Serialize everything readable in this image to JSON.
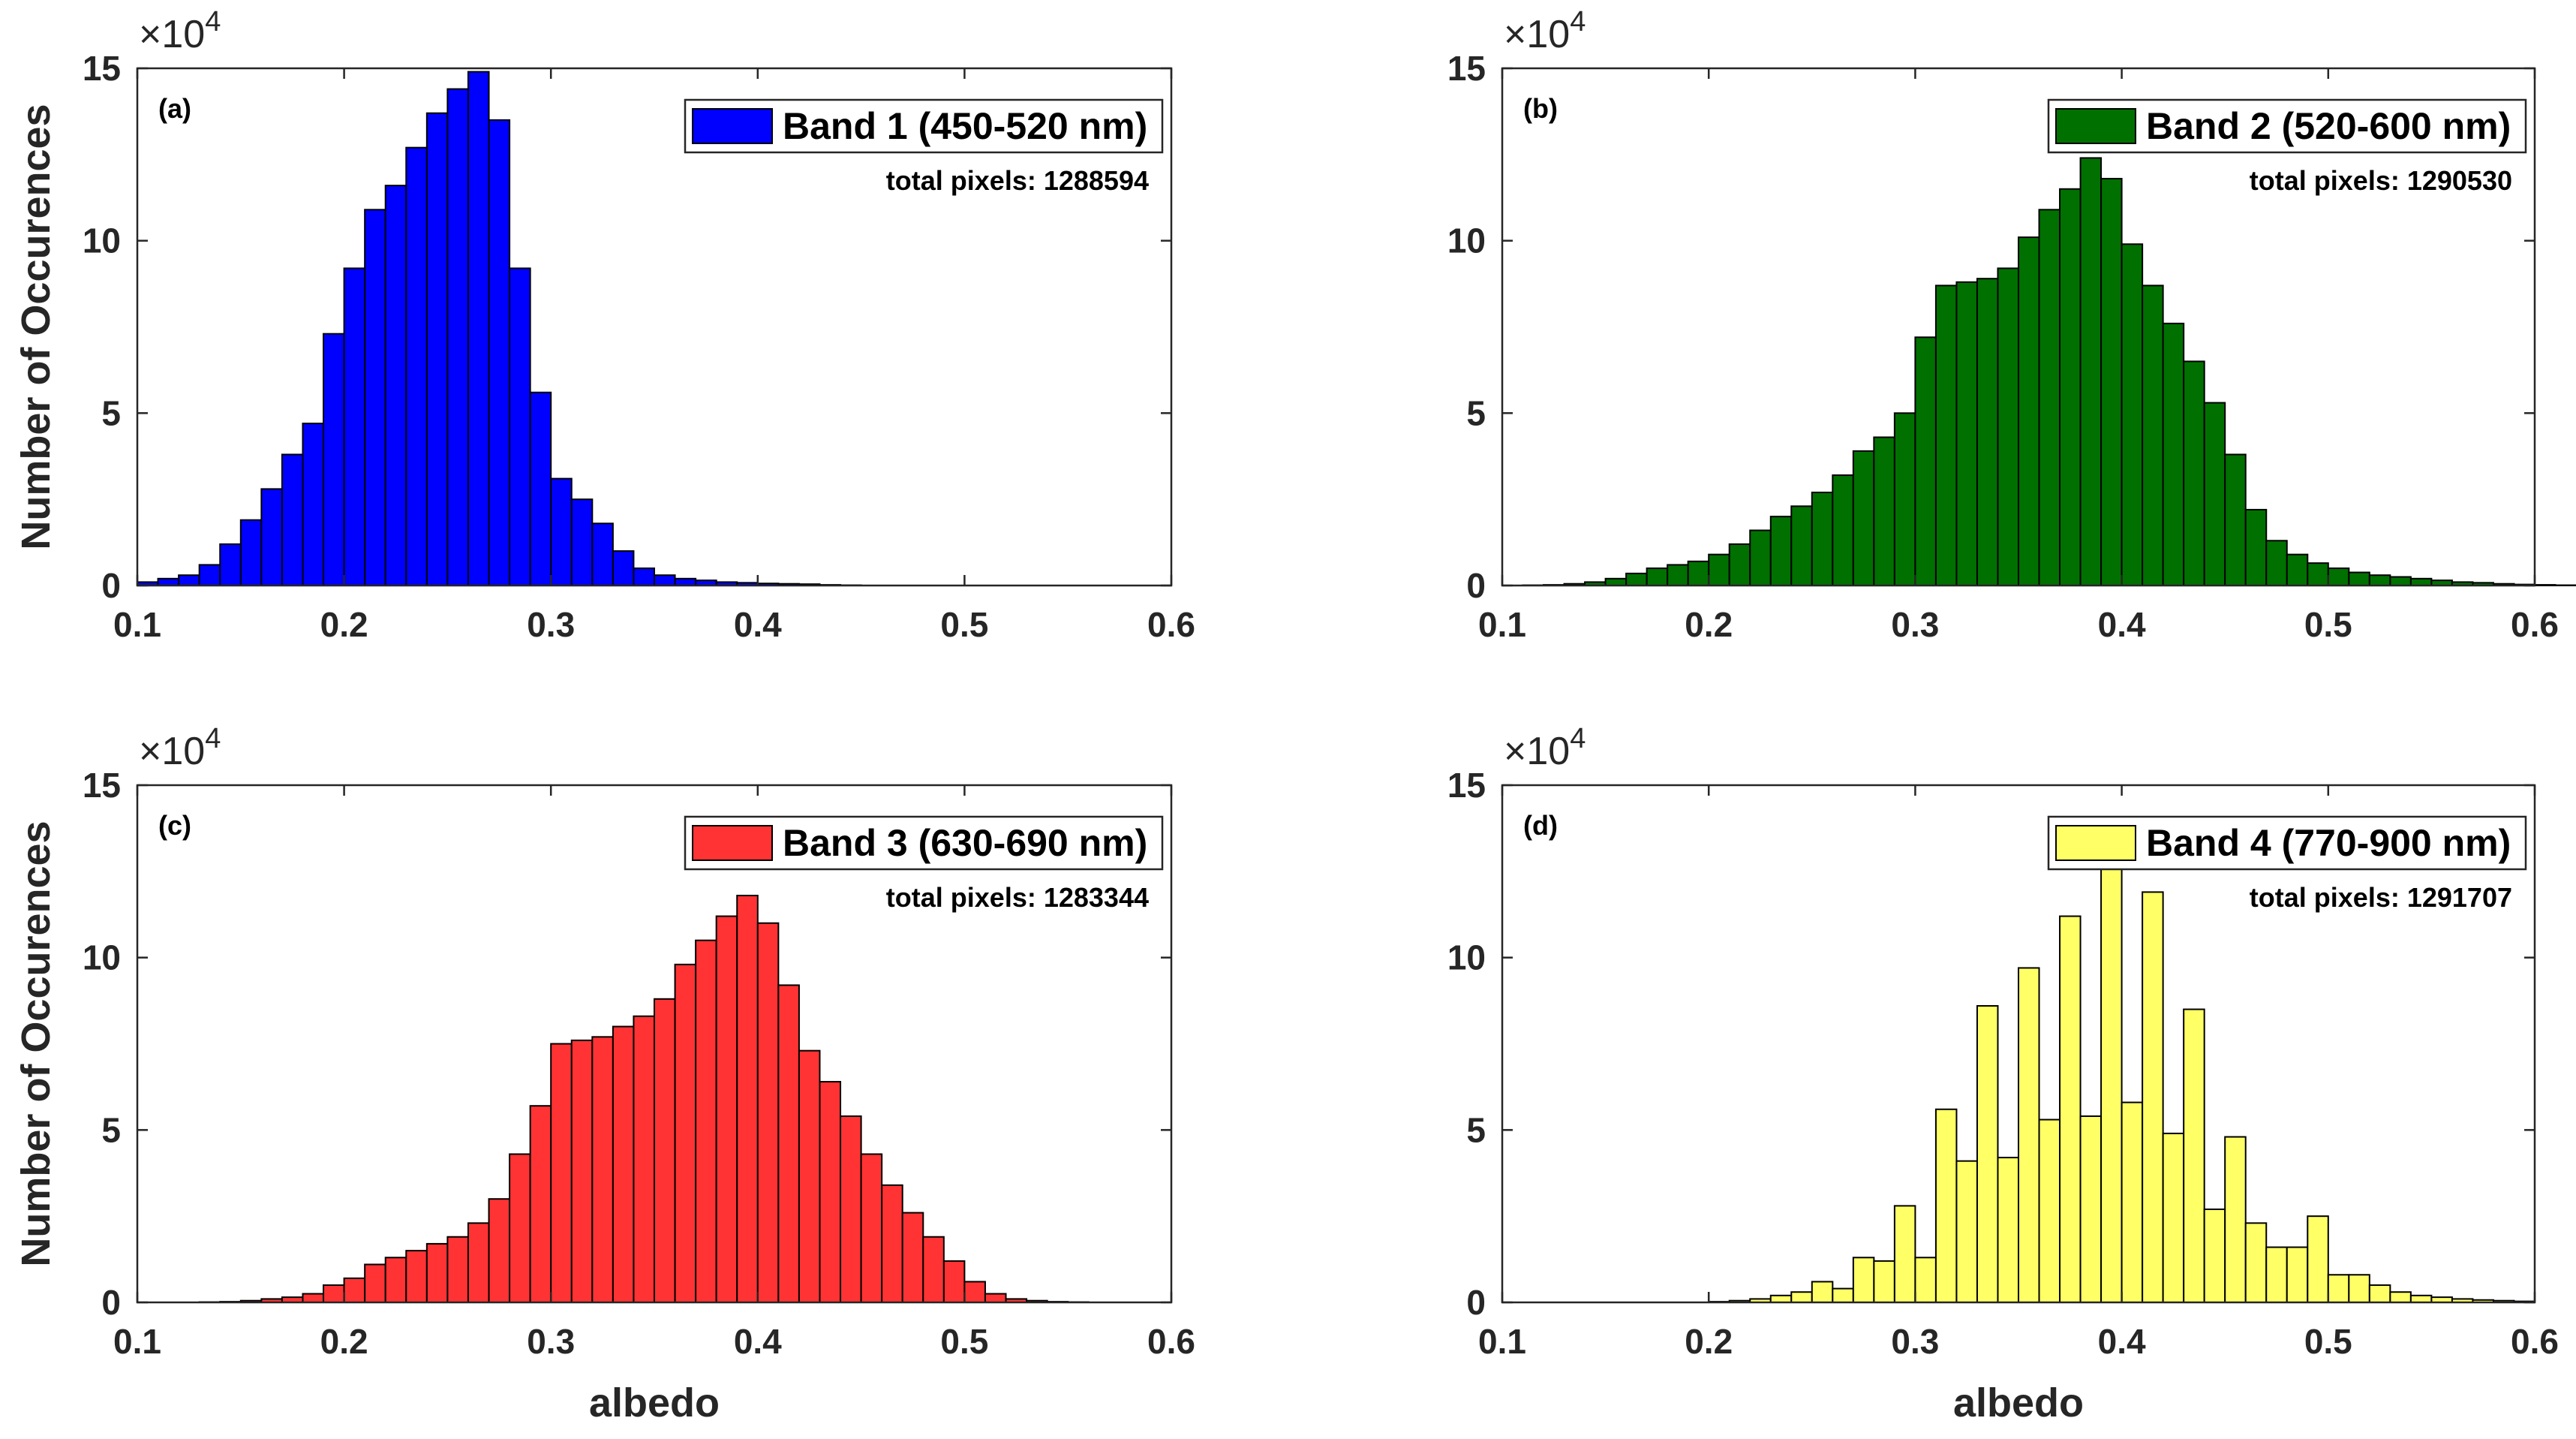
{
  "chart_data": [
    {
      "type": "bar",
      "panel_label": "(a)",
      "legend": "Band 1 (450-520 nm)",
      "legend_color": "#0000ff",
      "legend_position": "top-right",
      "total_pixels_text": "total pixels: 1288594",
      "xlabel": "",
      "ylabel": "Number of Occurences",
      "xlim": [
        0.1,
        0.6
      ],
      "ylim": [
        0,
        15
      ],
      "y_multiplier": "×10",
      "y_exponent": "4",
      "xticks": [
        "0.1",
        "0.2",
        "0.3",
        "0.4",
        "0.5",
        "0.6"
      ],
      "yticks": [
        "0",
        "5",
        "10",
        "15"
      ],
      "bin_start": 0.1,
      "bin_width": 0.01,
      "values": [
        0.1,
        0.2,
        0.3,
        0.6,
        1.2,
        1.9,
        2.8,
        3.8,
        4.7,
        7.3,
        9.2,
        10.9,
        11.6,
        12.7,
        13.7,
        14.4,
        14.9,
        13.5,
        9.2,
        5.6,
        3.1,
        2.5,
        1.8,
        1.0,
        0.5,
        0.3,
        0.2,
        0.15,
        0.1,
        0.08,
        0.06,
        0.05,
        0.04,
        0.02,
        0.01
      ]
    },
    {
      "type": "bar",
      "panel_label": "(b)",
      "legend": "Band 2 (520-600 nm)",
      "legend_color": "#007000",
      "legend_position": "top-right",
      "total_pixels_text": "total pixels: 1290530",
      "xlabel": "",
      "ylabel": "",
      "xlim": [
        0.1,
        0.6
      ],
      "ylim": [
        0,
        15
      ],
      "y_multiplier": "×10",
      "y_exponent": "4",
      "xticks": [
        "0.1",
        "0.2",
        "0.3",
        "0.4",
        "0.5",
        "0.6"
      ],
      "yticks": [
        "0",
        "5",
        "10",
        "15"
      ],
      "bin_start": 0.11,
      "bin_width": 0.01,
      "values": [
        0.01,
        0.02,
        0.05,
        0.1,
        0.2,
        0.35,
        0.5,
        0.6,
        0.7,
        0.9,
        1.2,
        1.6,
        2.0,
        2.3,
        2.7,
        3.2,
        3.9,
        4.3,
        5.0,
        7.2,
        8.7,
        8.8,
        8.9,
        9.2,
        10.1,
        10.9,
        11.5,
        12.4,
        11.8,
        9.9,
        8.7,
        7.6,
        6.5,
        5.3,
        3.8,
        2.2,
        1.3,
        0.9,
        0.65,
        0.5,
        0.38,
        0.3,
        0.25,
        0.2,
        0.15,
        0.1,
        0.08,
        0.05,
        0.03,
        0.02,
        0.01,
        0.01
      ]
    },
    {
      "type": "bar",
      "panel_label": "(c)",
      "legend": "Band 3 (630-690 nm)",
      "legend_color": "#ff3333",
      "legend_position": "top-right",
      "total_pixels_text": "total pixels: 1283344",
      "xlabel": "albedo",
      "ylabel": "Number of Occurences",
      "xlim": [
        0.1,
        0.6
      ],
      "ylim": [
        0,
        15
      ],
      "y_multiplier": "×10",
      "y_exponent": "4",
      "xticks": [
        "0.1",
        "0.2",
        "0.3",
        "0.4",
        "0.5",
        "0.6"
      ],
      "yticks": [
        "0",
        "5",
        "10",
        "15"
      ],
      "bin_start": 0.13,
      "bin_width": 0.01,
      "values": [
        0.01,
        0.02,
        0.05,
        0.1,
        0.15,
        0.25,
        0.5,
        0.7,
        1.1,
        1.3,
        1.5,
        1.7,
        1.9,
        2.3,
        3.0,
        4.3,
        5.7,
        7.5,
        7.6,
        7.7,
        8.0,
        8.3,
        8.8,
        9.8,
        10.5,
        11.2,
        11.8,
        11.0,
        9.2,
        7.3,
        6.4,
        5.4,
        4.3,
        3.4,
        2.6,
        1.9,
        1.2,
        0.6,
        0.25,
        0.1,
        0.05,
        0.02,
        0.01
      ]
    },
    {
      "type": "bar",
      "panel_label": "(d)",
      "legend": "Band 4 (770-900 nm)",
      "legend_color": "#ffff66",
      "legend_position": "top-right",
      "total_pixels_text": "total pixels: 1291707",
      "xlabel": "albedo",
      "ylabel": "",
      "xlim": [
        0.1,
        0.6
      ],
      "ylim": [
        0,
        15
      ],
      "y_multiplier": "×10",
      "y_exponent": "4",
      "xticks": [
        "0.1",
        "0.2",
        "0.3",
        "0.4",
        "0.5",
        "0.6"
      ],
      "yticks": [
        "0",
        "5",
        "10",
        "15"
      ],
      "bin_start": 0.2,
      "bin_width": 0.01,
      "values": [
        0.02,
        0.05,
        0.1,
        0.2,
        0.3,
        0.6,
        0.4,
        1.3,
        1.2,
        2.8,
        1.3,
        5.6,
        4.1,
        8.6,
        4.2,
        9.7,
        5.3,
        11.2,
        5.4,
        12.7,
        5.8,
        11.9,
        4.9,
        8.5,
        2.7,
        4.8,
        2.3,
        1.6,
        1.6,
        2.5,
        0.8,
        0.8,
        0.5,
        0.3,
        0.2,
        0.15,
        0.1,
        0.07,
        0.05,
        0.03
      ]
    }
  ]
}
